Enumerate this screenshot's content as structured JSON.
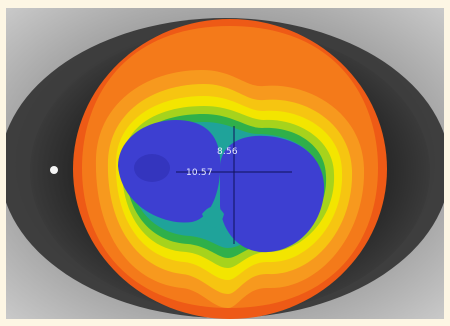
{
  "image": {
    "type": "corneal topography map overlaid on eye photograph",
    "colors": {
      "frame_background": "#fdf6e4",
      "steep_red": "#ef4a16",
      "orange": "#f7931e",
      "yellow": "#f5e400",
      "green": "#2db34a",
      "flat_blue": "#3d3fd1"
    }
  },
  "measurements": {
    "vertical_value": "8.56",
    "horizontal_value": "10.57"
  }
}
